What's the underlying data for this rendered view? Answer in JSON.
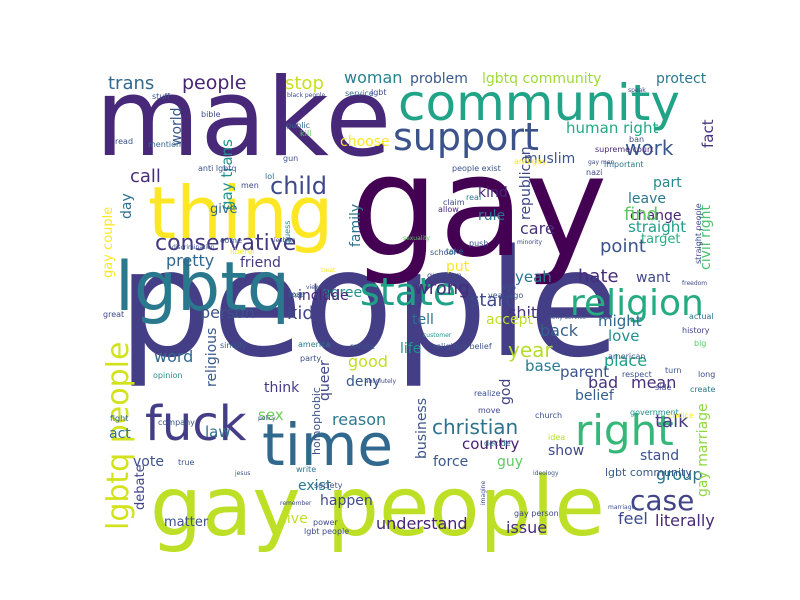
{
  "word_cloud": {
    "words": [
      {
        "text": "people",
        "color": "#433e85"
      },
      {
        "text": "gay",
        "color": "#440154"
      },
      {
        "text": "make",
        "color": "#482878"
      },
      {
        "text": "gay people",
        "color": "#bddf26"
      },
      {
        "text": "thing",
        "color": "#fde725"
      },
      {
        "text": "community",
        "color": "#20a386"
      },
      {
        "text": "lgbtq",
        "color": "#2a788e"
      },
      {
        "text": "time",
        "color": "#31688e"
      },
      {
        "text": "support",
        "color": "#3b528b"
      },
      {
        "text": "state",
        "color": "#1fa187"
      },
      {
        "text": "right",
        "color": "#35b779"
      },
      {
        "text": "fuck",
        "color": "#433e85"
      },
      {
        "text": "religion",
        "color": "#25ab82"
      },
      {
        "text": "lgbtq people",
        "color": "#d2e21b"
      },
      {
        "text": "child",
        "color": "#3e4989"
      },
      {
        "text": "case",
        "color": "#414487"
      },
      {
        "text": "christian",
        "color": "#2c728e"
      },
      {
        "text": "conservative",
        "color": "#443983"
      },
      {
        "text": "trans",
        "color": "#31688e"
      },
      {
        "text": "people",
        "color": "#482475"
      },
      {
        "text": "stop",
        "color": "#c8e020"
      },
      {
        "text": "woman",
        "color": "#26828e"
      },
      {
        "text": "problem",
        "color": "#38588c"
      },
      {
        "text": "lgbtq community",
        "color": "#9fda3a"
      },
      {
        "text": "protect",
        "color": "#2a788e"
      },
      {
        "text": "gay trans",
        "color": "#21918c"
      },
      {
        "text": "human right",
        "color": "#22a884"
      },
      {
        "text": "fact",
        "color": "#46337e"
      },
      {
        "text": "work",
        "color": "#39568c"
      },
      {
        "text": "choose",
        "color": "#fde725"
      },
      {
        "text": "call",
        "color": "#472d7b"
      },
      {
        "text": "republican",
        "color": "#3e4989"
      },
      {
        "text": "muslim",
        "color": "#3b528b"
      },
      {
        "text": "part",
        "color": "#23898e"
      },
      {
        "text": "civil right",
        "color": "#4ac16d"
      },
      {
        "text": "leave",
        "color": "#2a788e"
      },
      {
        "text": "change",
        "color": "#482878"
      },
      {
        "text": "give",
        "color": "#31688e"
      },
      {
        "text": "kind",
        "color": "#482475"
      },
      {
        "text": "rule",
        "color": "#2c728e"
      },
      {
        "text": "find",
        "color": "#5ec962"
      },
      {
        "text": "gay couple",
        "color": "#fde725"
      },
      {
        "text": "straight",
        "color": "#1f9e89"
      },
      {
        "text": "point",
        "color": "#3b528b"
      },
      {
        "text": "hate",
        "color": "#472d7b"
      },
      {
        "text": "care",
        "color": "#46337e"
      },
      {
        "text": "friend",
        "color": "#443983"
      },
      {
        "text": "agree",
        "color": "#21918c"
      },
      {
        "text": "lot",
        "color": "#433e85"
      },
      {
        "text": "kid",
        "color": "#404688"
      },
      {
        "text": "include",
        "color": "#482878"
      },
      {
        "text": "start",
        "color": "#3e4989"
      },
      {
        "text": "tell",
        "color": "#2c728e"
      },
      {
        "text": "put",
        "color": "#fde725"
      },
      {
        "text": "want",
        "color": "#3f4788"
      },
      {
        "text": "person",
        "color": "#3b528b"
      },
      {
        "text": "shit",
        "color": "#46337e"
      },
      {
        "text": "might",
        "color": "#31688e"
      },
      {
        "text": "year",
        "color": "#b5de2b"
      },
      {
        "text": "back",
        "color": "#355f8d"
      },
      {
        "text": "love",
        "color": "#21918c"
      },
      {
        "text": "word",
        "color": "#31688e"
      },
      {
        "text": "good",
        "color": "#c2df23"
      },
      {
        "text": "deny",
        "color": "#39568c"
      },
      {
        "text": "place",
        "color": "#1fa187"
      },
      {
        "text": "religious",
        "color": "#38588c"
      },
      {
        "text": "think",
        "color": "#443a83"
      },
      {
        "text": "queer",
        "color": "#3f4788"
      },
      {
        "text": "bad",
        "color": "#46337e"
      },
      {
        "text": "mean",
        "color": "#472d7b"
      },
      {
        "text": "reason",
        "color": "#2a788e"
      },
      {
        "text": "business",
        "color": "#3b528b"
      },
      {
        "text": "country",
        "color": "#481f70"
      },
      {
        "text": "law",
        "color": "#2d708e"
      },
      {
        "text": "talk",
        "color": "#433e85"
      },
      {
        "text": "group",
        "color": "#2c728e"
      },
      {
        "text": "force",
        "color": "#38588c"
      },
      {
        "text": "guy",
        "color": "#5ec962"
      },
      {
        "text": "show",
        "color": "#3e4989"
      },
      {
        "text": "stand",
        "color": "#3b528b"
      },
      {
        "text": "gay marriage",
        "color": "#8fd744"
      },
      {
        "text": "vote",
        "color": "#3b528b"
      },
      {
        "text": "exist",
        "color": "#2a788e"
      },
      {
        "text": "happen",
        "color": "#3e4989"
      },
      {
        "text": "debate",
        "color": "#414487"
      },
      {
        "text": "understand",
        "color": "#482475"
      },
      {
        "text": "issue",
        "color": "#472d7b"
      },
      {
        "text": "feel",
        "color": "#3e4989"
      },
      {
        "text": "literally",
        "color": "#482878"
      },
      {
        "text": "matter",
        "color": "#3b528b"
      },
      {
        "text": "live",
        "color": "#c2df23"
      },
      {
        "text": "act",
        "color": "#2c728e"
      },
      {
        "text": "sex",
        "color": "#6ccd5a"
      },
      {
        "text": "wrong",
        "color": "#472d7b"
      },
      {
        "text": "yeah",
        "color": "#2a788e"
      },
      {
        "text": "accept",
        "color": "#bddf26"
      },
      {
        "text": "base",
        "color": "#2a788e"
      },
      {
        "text": "parent",
        "color": "#3b528b"
      },
      {
        "text": "belief",
        "color": "#355f8d"
      },
      {
        "text": "god",
        "color": "#414487"
      },
      {
        "text": "pretty",
        "color": "#31688e"
      },
      {
        "text": "day",
        "color": "#2d708e"
      },
      {
        "text": "family",
        "color": "#2c728e"
      },
      {
        "text": "world",
        "color": "#38588c"
      },
      {
        "text": "life",
        "color": "#21918c"
      },
      {
        "text": "target",
        "color": "#29af7f"
      },
      {
        "text": "lgbt community",
        "color": "#38588c"
      },
      {
        "text": "homophobic",
        "color": "#3b528b"
      }
    ],
    "small_words": [
      {
        "text": "anti lgbtq",
        "color": "#3b528b"
      },
      {
        "text": "mention",
        "color": "#31688e"
      },
      {
        "text": "stuff",
        "color": "#3b528b"
      },
      {
        "text": "public",
        "color": "#31688e"
      },
      {
        "text": "kill",
        "color": "#5ec962"
      },
      {
        "text": "gun",
        "color": "#3b528b"
      },
      {
        "text": "men",
        "color": "#3e4989"
      },
      {
        "text": "lol",
        "color": "#2c728e"
      },
      {
        "text": "guess",
        "color": "#21918c"
      },
      {
        "text": "allow",
        "color": "#482878"
      },
      {
        "text": "claim",
        "color": "#3e4989"
      },
      {
        "text": "real",
        "color": "#2a788e"
      },
      {
        "text": "people exist",
        "color": "#3b528b"
      },
      {
        "text": "anti gay",
        "color": "#fde725"
      },
      {
        "text": "supreme court",
        "color": "#482878"
      },
      {
        "text": "nazi",
        "color": "#3e4989"
      },
      {
        "text": "important",
        "color": "#2a788e"
      },
      {
        "text": "ban",
        "color": "#3e4989"
      },
      {
        "text": "actual",
        "color": "#2c728e"
      },
      {
        "text": "history",
        "color": "#414487"
      },
      {
        "text": "big",
        "color": "#5ec962"
      },
      {
        "text": "american",
        "color": "#38588c"
      },
      {
        "text": "respect",
        "color": "#3b528b"
      },
      {
        "text": "side",
        "color": "#404688"
      },
      {
        "text": "turn",
        "color": "#3b528b"
      },
      {
        "text": "long",
        "color": "#3e4989"
      },
      {
        "text": "create",
        "color": "#2a788e"
      },
      {
        "text": "church",
        "color": "#3b528b"
      },
      {
        "text": "government",
        "color": "#21918c"
      },
      {
        "text": "choice",
        "color": "#fde725"
      },
      {
        "text": "realize",
        "color": "#3b528b"
      },
      {
        "text": "move",
        "color": "#3e4989"
      },
      {
        "text": "decide",
        "color": "#2c728e"
      },
      {
        "text": "idea",
        "color": "#b5de2b"
      },
      {
        "text": "gay person",
        "color": "#3e4989"
      },
      {
        "text": "ago",
        "color": "#3b528b"
      },
      {
        "text": "year ago",
        "color": "#3b528b"
      },
      {
        "text": "simply",
        "color": "#38588c"
      },
      {
        "text": "america",
        "color": "#2a788e"
      },
      {
        "text": "party",
        "color": "#3b528b"
      },
      {
        "text": "opinion",
        "color": "#21918c"
      },
      {
        "text": "great",
        "color": "#3e4989"
      },
      {
        "text": "fight",
        "color": "#31688e"
      },
      {
        "text": "company",
        "color": "#3b528b"
      },
      {
        "text": "true",
        "color": "#3b528b"
      },
      {
        "text": "write",
        "color": "#2c728e"
      },
      {
        "text": "society",
        "color": "#3b528b"
      },
      {
        "text": "power",
        "color": "#3e4989"
      },
      {
        "text": "lgbt people",
        "color": "#3e4989"
      },
      {
        "text": "school",
        "color": "#3b528b"
      },
      {
        "text": "question",
        "color": "#3e4989"
      },
      {
        "text": "take",
        "color": "#31688e"
      },
      {
        "text": "push",
        "color": "#3b528b"
      },
      {
        "text": "lose",
        "color": "#31688e"
      },
      {
        "text": "end",
        "color": "#3e4989"
      },
      {
        "text": "come",
        "color": "#3b528b"
      },
      {
        "text": "liberal",
        "color": "#fde725"
      },
      {
        "text": "straight people",
        "color": "#3e4989"
      },
      {
        "text": "refuse",
        "color": "#3b528b"
      },
      {
        "text": "religious belief",
        "color": "#3b528b"
      },
      {
        "text": "service",
        "color": "#31688e"
      },
      {
        "text": "lgbt",
        "color": "#3e4989"
      },
      {
        "text": "read",
        "color": "#3b528b"
      },
      {
        "text": "bible",
        "color": "#3e4989"
      },
      {
        "text": "speak",
        "color": "#3e4989"
      },
      {
        "text": "black people",
        "color": "#3e4989"
      },
      {
        "text": "discrimination",
        "color": "#3b528b"
      },
      {
        "text": "lesbian",
        "color": "#3e4989"
      },
      {
        "text": "sexuality",
        "color": "#5ec962"
      },
      {
        "text": "minority",
        "color": "#3e4989"
      },
      {
        "text": "deny service",
        "color": "#3b528b"
      },
      {
        "text": "customer",
        "color": "#21918c"
      },
      {
        "text": "freedom",
        "color": "#3e4989"
      },
      {
        "text": "policy",
        "color": "#3b528b"
      },
      {
        "text": "absolutely",
        "color": "#3e4989"
      },
      {
        "text": "ideology",
        "color": "#3b528b"
      },
      {
        "text": "imagine",
        "color": "#3e4989"
      },
      {
        "text": "jesus",
        "color": "#3b528b"
      },
      {
        "text": "gay men",
        "color": "#3e4989"
      },
      {
        "text": "treat",
        "color": "#fde725"
      },
      {
        "text": "view",
        "color": "#3b528b"
      },
      {
        "text": "remember",
        "color": "#3e4989"
      },
      {
        "text": "marriage",
        "color": "#3b528b"
      }
    ]
  }
}
